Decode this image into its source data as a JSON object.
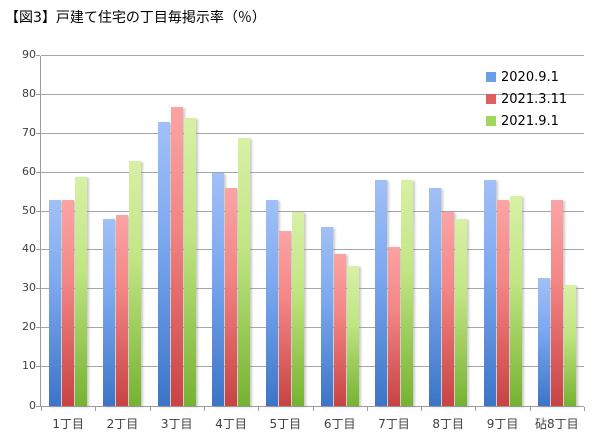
{
  "title": "【図3】戸建て住宅の丁目毎掲示率（％）",
  "chart_data": {
    "type": "bar",
    "title": "【図3】戸建て住宅の丁目毎掲示率（％）",
    "categories": [
      "1丁目",
      "2丁目",
      "3丁目",
      "4丁目",
      "5丁目",
      "6丁目",
      "7丁目",
      "8丁目",
      "9丁目",
      "砧8丁目"
    ],
    "series": [
      {
        "name": "2020.9.1",
        "color": "#6d9eea",
        "values": [
          53,
          48,
          73,
          60,
          53,
          46,
          58,
          56,
          58,
          33
        ]
      },
      {
        "name": "2021.3.11",
        "color": "#df5f5f",
        "values": [
          53,
          49,
          77,
          56,
          45,
          39,
          41,
          50,
          53,
          53
        ]
      },
      {
        "name": "2021.9.1",
        "color": "#a2d75d",
        "values": [
          59,
          63,
          74,
          69,
          50,
          36,
          58,
          48,
          54,
          31
        ]
      }
    ],
    "xlabel": "",
    "ylabel": "",
    "ylim": [
      0,
      90
    ],
    "yticks": [
      0,
      10,
      20,
      30,
      40,
      50,
      60,
      70,
      80,
      90
    ],
    "grid": true,
    "legend_position": "top-right",
    "gridline_color": "#a6a6a6",
    "axis_color": "#9b9b9b"
  }
}
